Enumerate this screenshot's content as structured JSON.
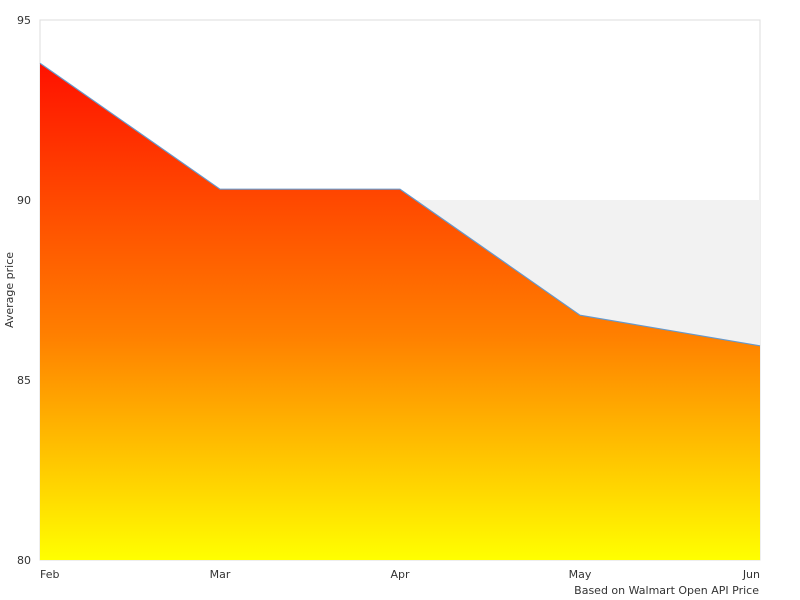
{
  "chart_data": {
    "type": "area",
    "categories": [
      "Feb",
      "Mar",
      "Apr",
      "May",
      "Jun"
    ],
    "values": [
      93.8,
      90.3,
      90.3,
      86.8,
      85.95
    ],
    "ylim": [
      80,
      95
    ],
    "yticks": [
      95,
      90,
      85,
      80
    ],
    "xlabel": "",
    "ylabel": "Average price",
    "grid": true,
    "gradient": {
      "top": "#ff1100",
      "middle": "#ff8000",
      "bottom": "#ffff00"
    },
    "line_color": "#6699cc",
    "band_color": "#f2f2f2"
  },
  "footer": {
    "source": "Based on Walmart Open API Price"
  }
}
